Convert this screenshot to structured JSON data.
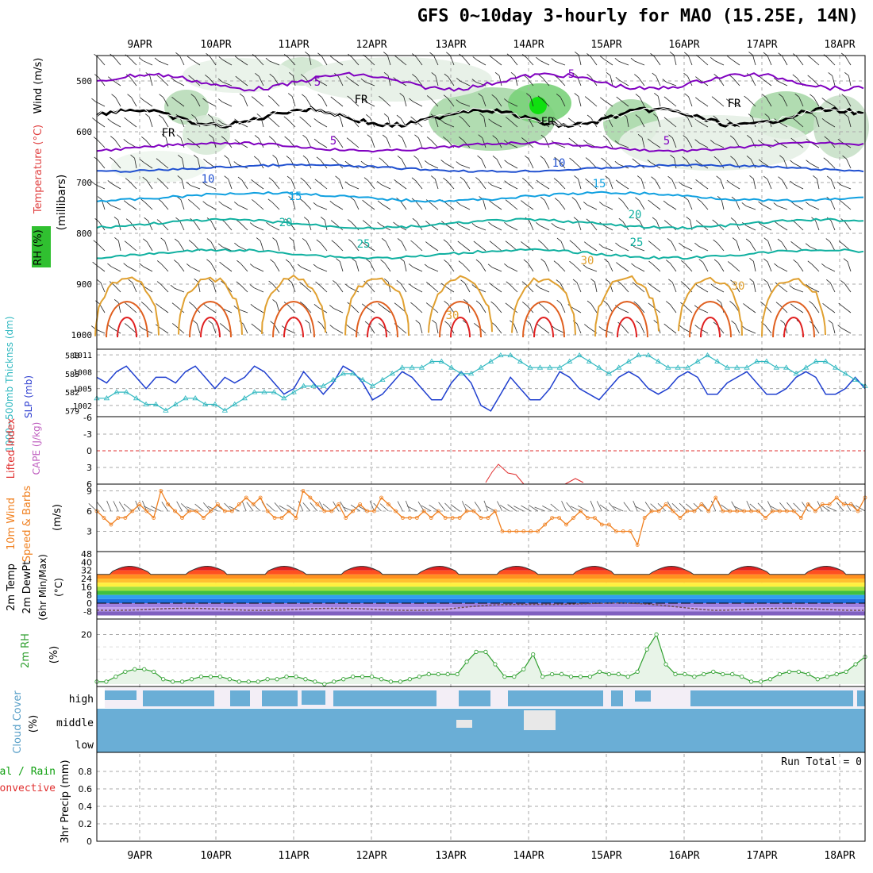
{
  "title": "GFS 0~10day 3-hourly for MAO (15.25E, 14N)",
  "dates": [
    "9APR",
    "10APR",
    "11APR",
    "12APR",
    "13APR",
    "14APR",
    "15APR",
    "16APR",
    "17APR",
    "18APR"
  ],
  "colors": {
    "wind_purple": "#8000c0",
    "temp_blue": "#2050d0",
    "temp_cyan": "#10a0e0",
    "temp_teal": "#10b0a0",
    "temp_orange": "#e0a030",
    "temp_red": "#e02020",
    "slp_blue": "#1f3fcf",
    "thick_cyan": "#30b8c0",
    "wind10m_orange": "#f08020",
    "rh_green": "#30a030",
    "cloud_blue": "#6aaed6",
    "precip_green": "#10a010"
  },
  "panels": {
    "upper": {
      "ylabel_wind": "Wind (m/s)",
      "ylabel_temp": "Temperature (°C)",
      "ylabel_rh": "RH (%)",
      "ylabel_units": "(millibars)",
      "ticks": [
        "500",
        "600",
        "700",
        "800",
        "900",
        "1000"
      ],
      "contour_labels": [
        "5",
        "5",
        "5",
        "5",
        "FR",
        "FR",
        "FR",
        "FR",
        "10",
        "10",
        "15",
        "15",
        "20",
        "20",
        "25",
        "25",
        "30",
        "30",
        "30"
      ]
    },
    "slp": {
      "ylabel_thick": "1000~500mb Thicknss (dm)",
      "ylabel_slp": "SLP (mb)",
      "thick_ticks": [
        "588",
        "585",
        "582",
        "579"
      ],
      "slp_ticks": [
        "1011",
        "1008",
        "1005",
        "1002"
      ]
    },
    "li": {
      "ylabel_li": "Lifted Index",
      "ylabel_cape": "CAPE (J/kg)",
      "ticks": [
        "-6",
        "-3",
        "0",
        "3",
        "6"
      ]
    },
    "wind10m": {
      "ylabel_a": "10m Wind",
      "ylabel_b": "Speed & Barbs",
      "units": "(m/s)",
      "ticks": [
        "9",
        "6",
        "3"
      ]
    },
    "temp2m": {
      "ylabel_a": "2m Temp",
      "ylabel_b": "2m DewPt",
      "ylabel_c": "(6hr Min/Max)",
      "units": "(°C)",
      "ticks": [
        "48",
        "40",
        "32",
        "24",
        "16",
        "8",
        "0",
        "-8"
      ]
    },
    "rh2m": {
      "ylabel": "2m RH",
      "units": "(%)",
      "ticks": [
        "20"
      ]
    },
    "cloud": {
      "ylabel": "Cloud Cover",
      "units": "(%)",
      "levels": [
        "high",
        "middle",
        "low"
      ]
    },
    "precip": {
      "ylabel_a": "Total / Rain",
      "ylabel_b": "Convective",
      "ylabel_c": "3hr Precip (mm)",
      "ticks": [
        "0.8",
        "0.6",
        "0.4",
        "0.2",
        "0"
      ],
      "run_total": "Run Total = 0"
    }
  },
  "chart_data": [
    {
      "type": "line",
      "title": "1000~500mb Thickness (dm) / SLP (mb)",
      "series": [
        {
          "name": "SLP (mb)",
          "values": [
            1007,
            1006,
            1008,
            1009,
            1007,
            1005,
            1007,
            1007,
            1006,
            1008,
            1009,
            1007,
            1005,
            1007,
            1006,
            1007,
            1009,
            1008,
            1006,
            1004,
            1005,
            1008,
            1006,
            1004,
            1006,
            1009,
            1008,
            1006,
            1003,
            1004,
            1006,
            1008,
            1007,
            1005,
            1003,
            1003,
            1006,
            1008,
            1006,
            1002,
            1001,
            1004,
            1007,
            1005,
            1003,
            1003,
            1005,
            1008,
            1007,
            1005,
            1004,
            1003,
            1005,
            1007,
            1008,
            1007,
            1005,
            1004,
            1005,
            1007,
            1008,
            1007,
            1004,
            1004,
            1006,
            1007,
            1008,
            1006,
            1004,
            1004,
            1005,
            1007,
            1008,
            1007,
            1004,
            1004,
            1005,
            1007,
            1005
          ]
        },
        {
          "name": "Thickness (dm)",
          "values": [
            581,
            581,
            582,
            582,
            581,
            580,
            580,
            579,
            580,
            581,
            581,
            580,
            580,
            579,
            580,
            581,
            582,
            582,
            582,
            581,
            582,
            583,
            583,
            583,
            584,
            585,
            585,
            584,
            583,
            584,
            585,
            586,
            586,
            586,
            587,
            587,
            586,
            585,
            585,
            586,
            587,
            588,
            588,
            587,
            586,
            586,
            586,
            586,
            587,
            588,
            587,
            586,
            585,
            586,
            587,
            588,
            588,
            587,
            586,
            586,
            586,
            587,
            588,
            587,
            586,
            586,
            586,
            587,
            587,
            586,
            586,
            585,
            586,
            587,
            587,
            586,
            585,
            584,
            583
          ]
        }
      ],
      "ylim_slp": [
        1000,
        1012
      ],
      "ylim_thick": [
        578,
        589
      ]
    },
    {
      "type": "line",
      "title": "10m Wind Speed (m/s)",
      "series": [
        {
          "name": "10m Wind Speed",
          "values": [
            6,
            5,
            4,
            5,
            5,
            6,
            7,
            6,
            5,
            9,
            7,
            6,
            5,
            6,
            6,
            5,
            6,
            7,
            6,
            6,
            7,
            8,
            7,
            8,
            6,
            5,
            5,
            6,
            5,
            9,
            8,
            7,
            6,
            6,
            7,
            5,
            6,
            7,
            6,
            6,
            8,
            7,
            6,
            5,
            5,
            5,
            6,
            5,
            6,
            5,
            5,
            5,
            6,
            6,
            5,
            5,
            6,
            3,
            3,
            3,
            3,
            3,
            3,
            4,
            5,
            5,
            4,
            5,
            6,
            5,
            5,
            4,
            4,
            3,
            3,
            3,
            1,
            5,
            6,
            6,
            7,
            6,
            5,
            6,
            6,
            7,
            6,
            8,
            6,
            6,
            6,
            6,
            6,
            6,
            5,
            6,
            6,
            6,
            6,
            5,
            7,
            6,
            7,
            7,
            8,
            7,
            7,
            6,
            8
          ]
        }
      ],
      "ylim": [
        0,
        10
      ]
    },
    {
      "type": "area",
      "title": "2m RH (%)",
      "series": [
        {
          "name": "2m RH",
          "values": [
            1,
            1,
            3,
            5,
            6,
            6,
            5,
            2,
            1,
            1,
            2,
            3,
            3,
            3,
            2,
            1,
            1,
            1,
            2,
            2,
            3,
            3,
            2,
            1,
            0,
            1,
            2,
            3,
            3,
            3,
            2,
            1,
            1,
            2,
            3,
            4,
            4,
            4,
            4,
            9,
            13,
            13,
            8,
            3,
            3,
            6,
            12,
            3,
            4,
            4,
            3,
            3,
            3,
            5,
            4,
            4,
            3,
            5,
            14,
            20,
            8,
            4,
            4,
            3,
            4,
            5,
            4,
            4,
            3,
            1,
            1,
            2,
            4,
            5,
            5,
            4,
            2,
            3,
            4,
            5,
            8,
            11
          ]
        }
      ],
      "ylim": [
        0,
        24
      ]
    }
  ]
}
